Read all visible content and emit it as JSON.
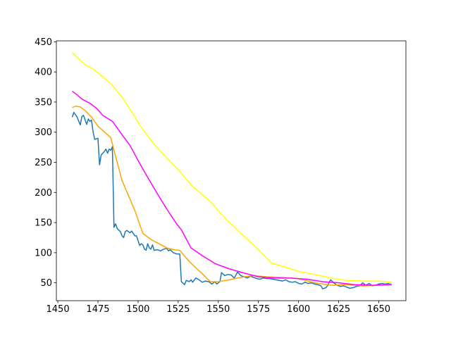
{
  "chart_data": {
    "type": "line",
    "xlim": [
      1449.1,
      1666.9
    ],
    "ylim": [
      20.4,
      451.6
    ],
    "xticks": [
      1450,
      1475,
      1500,
      1525,
      1550,
      1575,
      1600,
      1625,
      1650
    ],
    "yticks": [
      50,
      100,
      150,
      200,
      250,
      300,
      350,
      400,
      450
    ],
    "series": [
      {
        "color": "#1f77b4",
        "x": [
          1459,
          1460,
          1462,
          1464,
          1465,
          1466,
          1468,
          1469,
          1470,
          1471,
          1472,
          1473,
          1475,
          1476,
          1477,
          1479,
          1480,
          1481,
          1482,
          1483,
          1484,
          1485,
          1486,
          1487,
          1489,
          1490,
          1491,
          1492,
          1493,
          1495,
          1496,
          1498,
          1499,
          1500,
          1501,
          1502,
          1503,
          1504,
          1505,
          1506,
          1507,
          1508,
          1509,
          1510,
          1512,
          1514,
          1516,
          1518,
          1519,
          1520,
          1522,
          1524,
          1526,
          1527,
          1529,
          1530,
          1532,
          1533,
          1534,
          1536,
          1538,
          1540,
          1542,
          1544,
          1546,
          1548,
          1549,
          1550,
          1551,
          1552,
          1554,
          1556,
          1558,
          1560,
          1562,
          1564,
          1566,
          1568,
          1570,
          1572,
          1574,
          1576,
          1578,
          1580,
          1582,
          1584,
          1586,
          1588,
          1590,
          1592,
          1594,
          1596,
          1598,
          1600,
          1602,
          1604,
          1606,
          1608,
          1610,
          1612,
          1614,
          1615,
          1617,
          1618,
          1620,
          1622,
          1624,
          1626,
          1628,
          1630,
          1632,
          1634,
          1636,
          1638,
          1640,
          1642,
          1644,
          1646,
          1648,
          1650,
          1652,
          1654,
          1656,
          1658
        ],
        "values": [
          325,
          333,
          325,
          312,
          326,
          328,
          313,
          322,
          318,
          320,
          300,
          288,
          290,
          246,
          262,
          268,
          272,
          265,
          272,
          270,
          276,
          142,
          148,
          140,
          135,
          128,
          125,
          135,
          137,
          133,
          136,
          128,
          128,
          120,
          112,
          115,
          113,
          106,
          104,
          115,
          108,
          106,
          113,
          104,
          105,
          103,
          106,
          107,
          103,
          105,
          100,
          98,
          98,
          52,
          47,
          54,
          52,
          55,
          51,
          58,
          55,
          51,
          53,
          52,
          48,
          52,
          48,
          50,
          52,
          67,
          62,
          64,
          63,
          58,
          68,
          62,
          60,
          58,
          61,
          59,
          57,
          56,
          58,
          57,
          57,
          56,
          55,
          54,
          53,
          55,
          52,
          51,
          52,
          49,
          48,
          51,
          49,
          50,
          48,
          47,
          45,
          40,
          42,
          45,
          55,
          50,
          46,
          44,
          45,
          43,
          41,
          42,
          44,
          45,
          50,
          46,
          49,
          45,
          46,
          48,
          49,
          48,
          49,
          47
        ]
      },
      {
        "color": "#ffa500",
        "x": [
          1459,
          1461,
          1464,
          1467,
          1471,
          1475,
          1480,
          1483,
          1486,
          1490,
          1494,
          1498,
          1503,
          1508,
          1513,
          1518,
          1522,
          1526,
          1532,
          1540,
          1545,
          1550,
          1557,
          1562,
          1566,
          1572,
          1580,
          1590,
          1600,
          1610,
          1620,
          1630,
          1640,
          1650,
          1658
        ],
        "values": [
          341,
          343,
          342,
          336,
          325,
          310,
          298,
          291,
          260,
          220,
          195,
          170,
          132,
          122,
          115,
          108,
          105,
          104,
          85,
          65,
          52,
          52,
          55,
          58,
          60,
          62,
          60,
          59,
          57,
          50,
          46,
          47,
          45,
          46,
          48
        ]
      },
      {
        "color": "#ff00ff",
        "x": [
          1459,
          1462,
          1465,
          1470,
          1474,
          1478,
          1484,
          1490,
          1495,
          1500,
          1506,
          1512,
          1518,
          1524,
          1527,
          1533,
          1540,
          1548,
          1556,
          1565,
          1575,
          1585,
          1595,
          1605,
          1615,
          1625,
          1635,
          1645,
          1658
        ],
        "values": [
          368,
          362,
          355,
          348,
          340,
          328,
          318,
          296,
          278,
          253,
          225,
          198,
          172,
          148,
          138,
          108,
          95,
          82,
          74,
          67,
          60,
          58,
          58,
          56,
          52,
          50,
          47,
          46,
          47
        ]
      },
      {
        "color": "#ffff00",
        "x": [
          1459,
          1463,
          1467,
          1472,
          1478,
          1484,
          1490,
          1496,
          1502,
          1510,
          1518,
          1526,
          1534,
          1545,
          1555,
          1565,
          1575,
          1583,
          1592,
          1600,
          1610,
          1620,
          1630,
          1640,
          1650,
          1658
        ],
        "values": [
          432,
          422,
          412,
          405,
          392,
          378,
          358,
          334,
          308,
          280,
          257,
          235,
          210,
          185,
          155,
          130,
          105,
          83,
          76,
          69,
          64,
          58,
          54,
          53,
          53,
          51
        ]
      }
    ]
  }
}
